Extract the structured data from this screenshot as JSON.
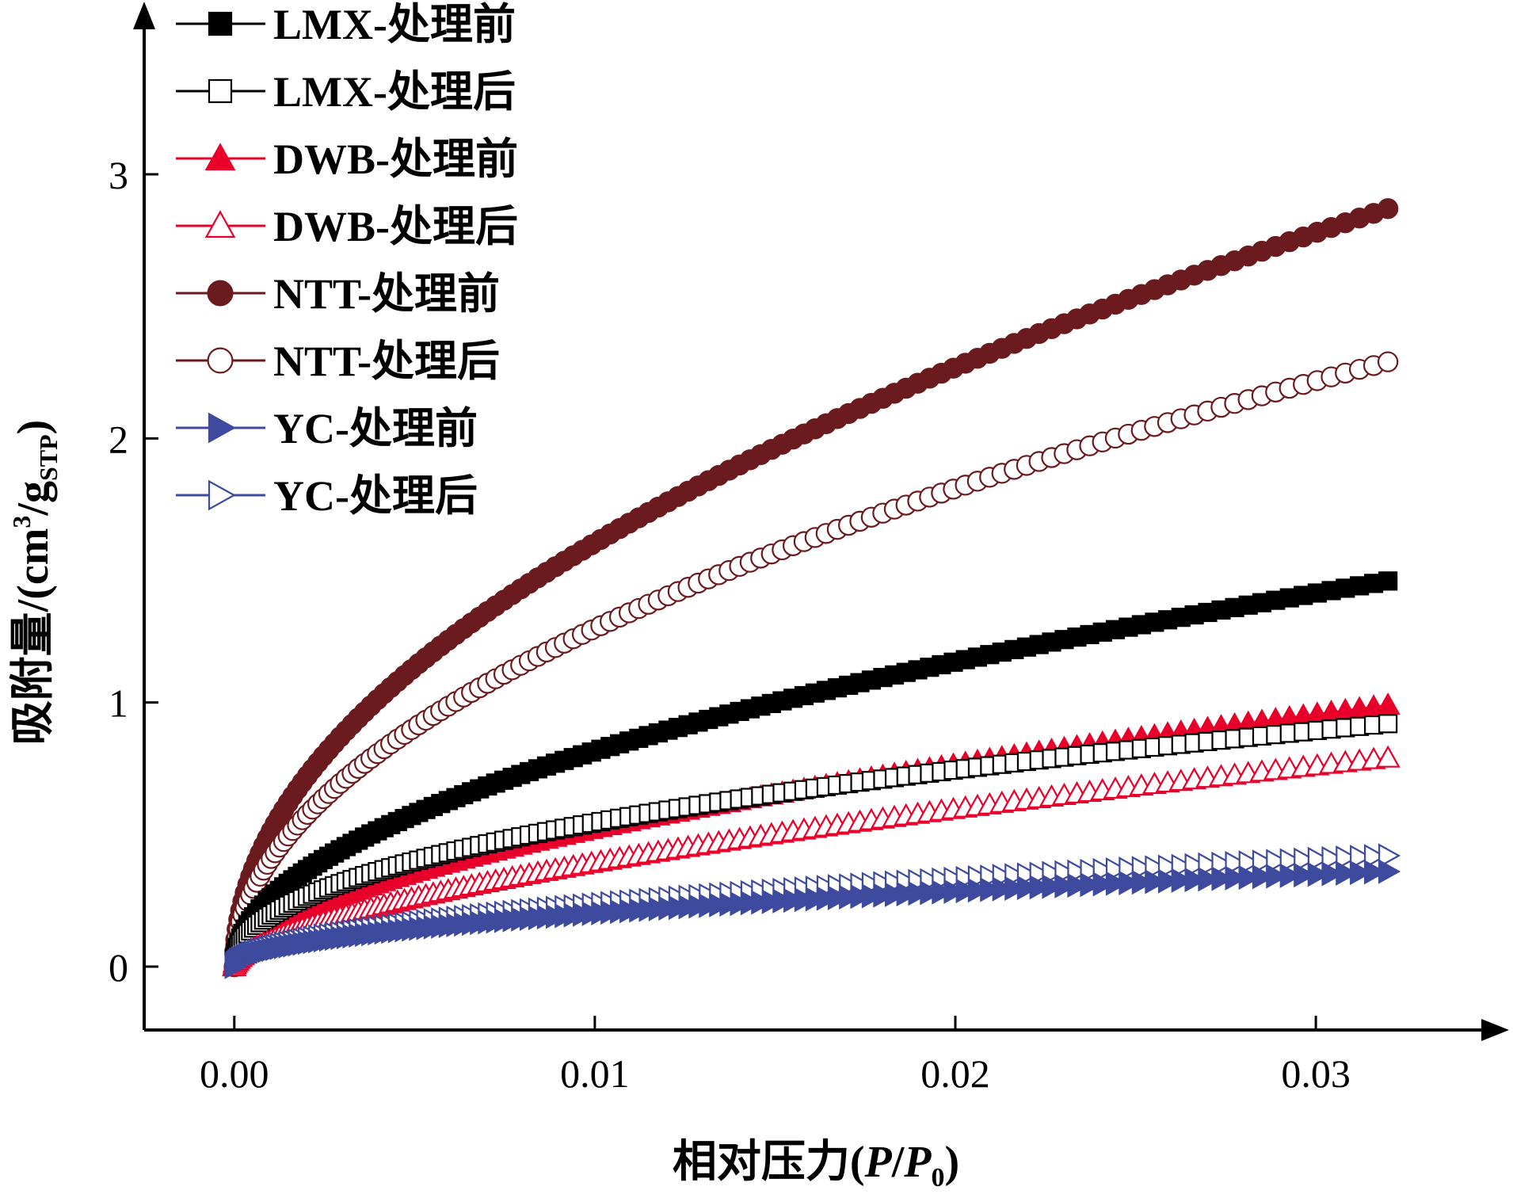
{
  "chart_data": {
    "type": "line",
    "xlabel": {
      "pre": "相对压力(",
      "p": "P",
      "slash": "/",
      "p0": "P",
      "sub0": "0",
      "post": ")"
    },
    "ylabel": {
      "pre": "吸附量/(cm",
      "sup": "3",
      "mid": "/g",
      "sub": "STP",
      "post": ")"
    },
    "xlim": [
      -0.0025,
      0.0347
    ],
    "ylim": [
      -0.24,
      3.57
    ],
    "xticks": [
      0.0,
      0.01,
      0.02,
      0.03
    ],
    "xtick_labels": [
      "0.00",
      "0.01",
      "0.02",
      "0.03"
    ],
    "yticks": [
      0,
      1,
      2,
      3
    ],
    "ytick_labels": [
      "0",
      "1",
      "2",
      "3"
    ],
    "legend_position": "top-left",
    "x_range": [
      0.0,
      0.032
    ],
    "series": [
      {
        "name": "LMX-处理前",
        "color": "#000000",
        "marker": "square",
        "filled": true,
        "y_at_max_x": 1.46,
        "exponent": 0.5
      },
      {
        "name": "LMX-处理后",
        "color": "#000000",
        "marker": "square",
        "filled": false,
        "y_at_max_x": 0.92,
        "exponent": 0.45
      },
      {
        "name": "DWB-处理前",
        "color": "#e8002a",
        "marker": "triangle-up",
        "filled": true,
        "y_at_max_x": 0.99,
        "exponent": 0.55
      },
      {
        "name": "DWB-处理后",
        "color": "#e8002a",
        "marker": "triangle-up",
        "filled": false,
        "y_at_max_x": 0.79,
        "exponent": 0.6
      },
      {
        "name": "NTT-处理前",
        "color": "#6b1a1e",
        "marker": "circle",
        "filled": true,
        "y_at_max_x": 2.87,
        "exponent": 0.5
      },
      {
        "name": "NTT-处理后",
        "color": "#6b1a1e",
        "marker": "circle",
        "filled": false,
        "y_at_max_x": 2.29,
        "exponent": 0.5
      },
      {
        "name": "YC-处理前",
        "color": "#3d4a9e",
        "marker": "triangle-right",
        "filled": true,
        "y_at_max_x": 0.36,
        "exponent": 0.5
      },
      {
        "name": "YC-处理后",
        "color": "#3d4a9e",
        "marker": "triangle-right",
        "filled": false,
        "y_at_max_x": 0.42,
        "exponent": 0.5
      }
    ]
  }
}
